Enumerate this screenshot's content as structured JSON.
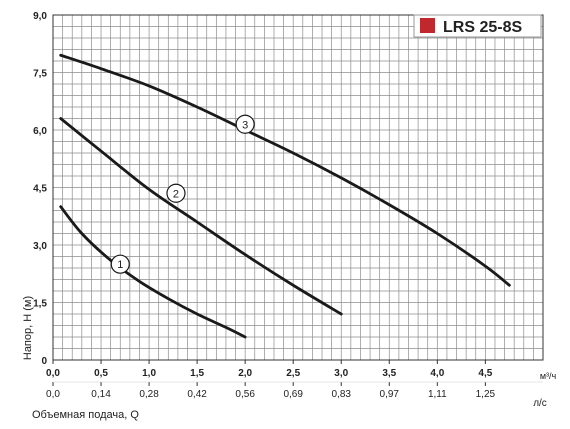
{
  "colors": {
    "grid": "#8c8c8c",
    "curve": "#1a1a1a",
    "badge": "#c0282e",
    "text": "#222222"
  },
  "chart_data": {
    "type": "line",
    "title": "LRS 25-8S",
    "ylabel": "Напор, H (м)",
    "xlabel": "Объемная подача, Q",
    "x_unit_primary": "м³/ч",
    "x_unit_secondary": "л/с",
    "xlim": [
      0,
      5.1
    ],
    "ylim": [
      0,
      9.0
    ],
    "grid": true,
    "legend_placement": "top-right",
    "x_ticks": [
      {
        "value": 0.0,
        "label": "0,0"
      },
      {
        "value": 0.5,
        "label": "0,5"
      },
      {
        "value": 1.0,
        "label": "1,0"
      },
      {
        "value": 1.5,
        "label": "1,5"
      },
      {
        "value": 2.0,
        "label": "2,0"
      },
      {
        "value": 2.5,
        "label": "2,5"
      },
      {
        "value": 3.0,
        "label": "3,0"
      },
      {
        "value": 3.5,
        "label": "3,5"
      },
      {
        "value": 4.0,
        "label": "4,0"
      },
      {
        "value": 4.5,
        "label": "4,5"
      }
    ],
    "x_ticks_secondary": [
      {
        "value": 0.0,
        "label": "0,0"
      },
      {
        "value": 0.5,
        "label": "0,14"
      },
      {
        "value": 1.0,
        "label": "0,28"
      },
      {
        "value": 1.5,
        "label": "0,42"
      },
      {
        "value": 2.0,
        "label": "0,56"
      },
      {
        "value": 2.5,
        "label": "0,69"
      },
      {
        "value": 3.0,
        "label": "0,83"
      },
      {
        "value": 3.5,
        "label": "0,97"
      },
      {
        "value": 4.0,
        "label": "1,11"
      },
      {
        "value": 4.5,
        "label": "1,25"
      }
    ],
    "y_ticks": [
      {
        "value": 0.0,
        "label": "0"
      },
      {
        "value": 1.5,
        "label": "1,5"
      },
      {
        "value": 3.0,
        "label": "3,0"
      },
      {
        "value": 4.5,
        "label": "4,5"
      },
      {
        "value": 6.0,
        "label": "6,0"
      },
      {
        "value": 7.5,
        "label": "7,5"
      },
      {
        "value": 9.0,
        "label": "9,0"
      }
    ],
    "grid_step_x": 0.1,
    "grid_step_y": 0.3,
    "series": [
      {
        "name": "1",
        "x": [
          0.08,
          0.3,
          0.6,
          0.9,
          1.2,
          1.5,
          1.8,
          2.0
        ],
        "y": [
          4.0,
          3.3,
          2.6,
          2.05,
          1.6,
          1.2,
          0.85,
          0.6
        ],
        "label_at": {
          "x": 0.7,
          "y": 2.5
        }
      },
      {
        "name": "2",
        "x": [
          0.08,
          0.5,
          1.0,
          1.5,
          2.0,
          2.5,
          3.0
        ],
        "y": [
          6.3,
          5.45,
          4.45,
          3.6,
          2.75,
          1.95,
          1.2
        ],
        "label_at": {
          "x": 1.28,
          "y": 4.35
        }
      },
      {
        "name": "3",
        "x": [
          0.08,
          0.5,
          1.0,
          1.5,
          2.0,
          2.5,
          3.0,
          3.5,
          4.0,
          4.5,
          4.75
        ],
        "y": [
          7.95,
          7.6,
          7.15,
          6.6,
          6.0,
          5.4,
          4.75,
          4.05,
          3.3,
          2.45,
          1.95
        ],
        "label_at": {
          "x": 2.0,
          "y": 6.15
        }
      }
    ]
  }
}
